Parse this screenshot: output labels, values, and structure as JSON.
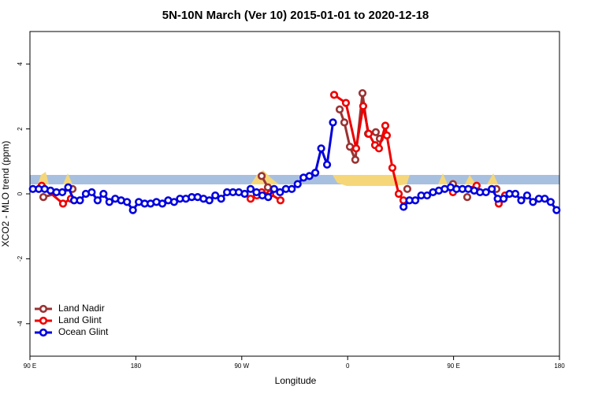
{
  "chart_data": {
    "type": "line",
    "title": "5N-10N March (Ver 10)   2015-01-01 to 2020-12-18",
    "xlabel": "Longitude",
    "ylabel": "XCO2 - MLO trend (ppm)",
    "xlim": [
      90,
      540
    ],
    "ylim": [
      -5,
      5
    ],
    "xticks": [
      {
        "value": 90,
        "label": "90 E"
      },
      180,
      {
        "value": 270,
        "label": "90 W"
      },
      {
        "value": 360,
        "label": "0"
      },
      {
        "value": 450,
        "label": "90 E"
      },
      {
        "value": 540,
        "label": "180"
      }
    ],
    "yticks": [
      -4,
      -2,
      0,
      2,
      4
    ],
    "legend": "bottom-left",
    "series": [
      {
        "name": "Land Nadir",
        "color": "#993333",
        "x": [
          101.4,
          126.2,
          200,
          286.9,
          292.2,
          320,
          353.2,
          357.2,
          361.9,
          366.5,
          372.6,
          377.3,
          383.9,
          387.3,
          400,
          410.7,
          430,
          449.5,
          455,
          461.6,
          475,
          486.4
        ],
        "values": [
          -0.1,
          0.15,
          null,
          0.55,
          0.2,
          null,
          2.6,
          2.2,
          1.45,
          1.05,
          3.1,
          1.85,
          1.9,
          1.7,
          null,
          0.15,
          null,
          0.3,
          null,
          -0.1,
          null,
          0.15
        ]
      },
      {
        "name": "Land Glint",
        "color": "#ee0000",
        "x": [
          100,
          118.1,
          124.8,
          200,
          277.5,
          282.8,
          286.9,
          294.2,
          302.9,
          325,
          348.5,
          358.5,
          367.2,
          373.2,
          377.9,
          383.3,
          386.6,
          392,
          393.3,
          398,
          403.4,
          407.4,
          430,
          449.5,
          469.6,
          480,
          488.4,
          493.7
        ],
        "values": [
          0.25,
          -0.3,
          -0.15,
          null,
          -0.15,
          -0.05,
          0.05,
          0.0,
          -0.2,
          null,
          3.05,
          2.8,
          1.4,
          2.7,
          1.85,
          1.5,
          1.4,
          2.1,
          1.8,
          0.8,
          0.0,
          -0.2,
          null,
          0.05,
          0.25,
          null,
          -0.3,
          -0.05
        ]
      },
      {
        "name": "Ocean Glint",
        "color": "#0000dd",
        "x": [
          92.5,
          97.5,
          102.5,
          107.5,
          112.5,
          117.5,
          122.5,
          127.5,
          132.5,
          137.5,
          142.5,
          147.5,
          152.5,
          157.5,
          162.5,
          167.5,
          172.5,
          177.5,
          182.5,
          187.5,
          192.5,
          197.5,
          202.5,
          207.5,
          212.5,
          217.5,
          222.5,
          227.5,
          232.5,
          237.5,
          242.5,
          247.5,
          252.5,
          257.5,
          262.5,
          267.5,
          272.5,
          277.5,
          282.5,
          287.5,
          292.5,
          297.5,
          302.5,
          307.5,
          312.5,
          317.5,
          322.5,
          327.5,
          332.5,
          337.5,
          342.5,
          347.5,
          352.5,
          357.5,
          362.5,
          367.5,
          372.5,
          377.5,
          382.5,
          387.5,
          392.5,
          397.5,
          402.5,
          407.5,
          412.5,
          417.5,
          422.5,
          427.5,
          432.5,
          437.5,
          442.5,
          447.5,
          452.5,
          457.5,
          462.5,
          467.5,
          472.5,
          477.5,
          482.5,
          487.5,
          492.5,
          497.5,
          502.5,
          507.5,
          512.5,
          517.5,
          522.5,
          527.5,
          532.5,
          537.5
        ],
        "values": [
          0.15,
          0.15,
          0.15,
          0.1,
          0.05,
          0.05,
          0.2,
          -0.2,
          -0.2,
          0.0,
          0.05,
          -0.2,
          0.0,
          -0.25,
          -0.15,
          -0.2,
          -0.25,
          -0.5,
          -0.25,
          -0.3,
          -0.3,
          -0.25,
          -0.3,
          -0.2,
          -0.25,
          -0.15,
          -0.15,
          -0.1,
          -0.1,
          -0.15,
          -0.2,
          -0.05,
          -0.15,
          0.05,
          0.05,
          0.05,
          0.0,
          0.15,
          0.05,
          -0.05,
          -0.1,
          0.15,
          0.05,
          0.15,
          0.15,
          0.3,
          0.5,
          0.55,
          0.65,
          1.4,
          0.9,
          2.2,
          null,
          null,
          null,
          null,
          null,
          null,
          null,
          null,
          null,
          null,
          null,
          -0.4,
          -0.2,
          -0.2,
          -0.05,
          -0.05,
          0.05,
          0.1,
          0.15,
          0.2,
          0.15,
          0.15,
          0.15,
          0.1,
          0.05,
          0.05,
          0.15,
          -0.15,
          -0.15,
          0.0,
          0.0,
          -0.2,
          -0.05,
          -0.25,
          -0.15,
          -0.15,
          -0.25,
          -0.5
        ]
      }
    ]
  }
}
